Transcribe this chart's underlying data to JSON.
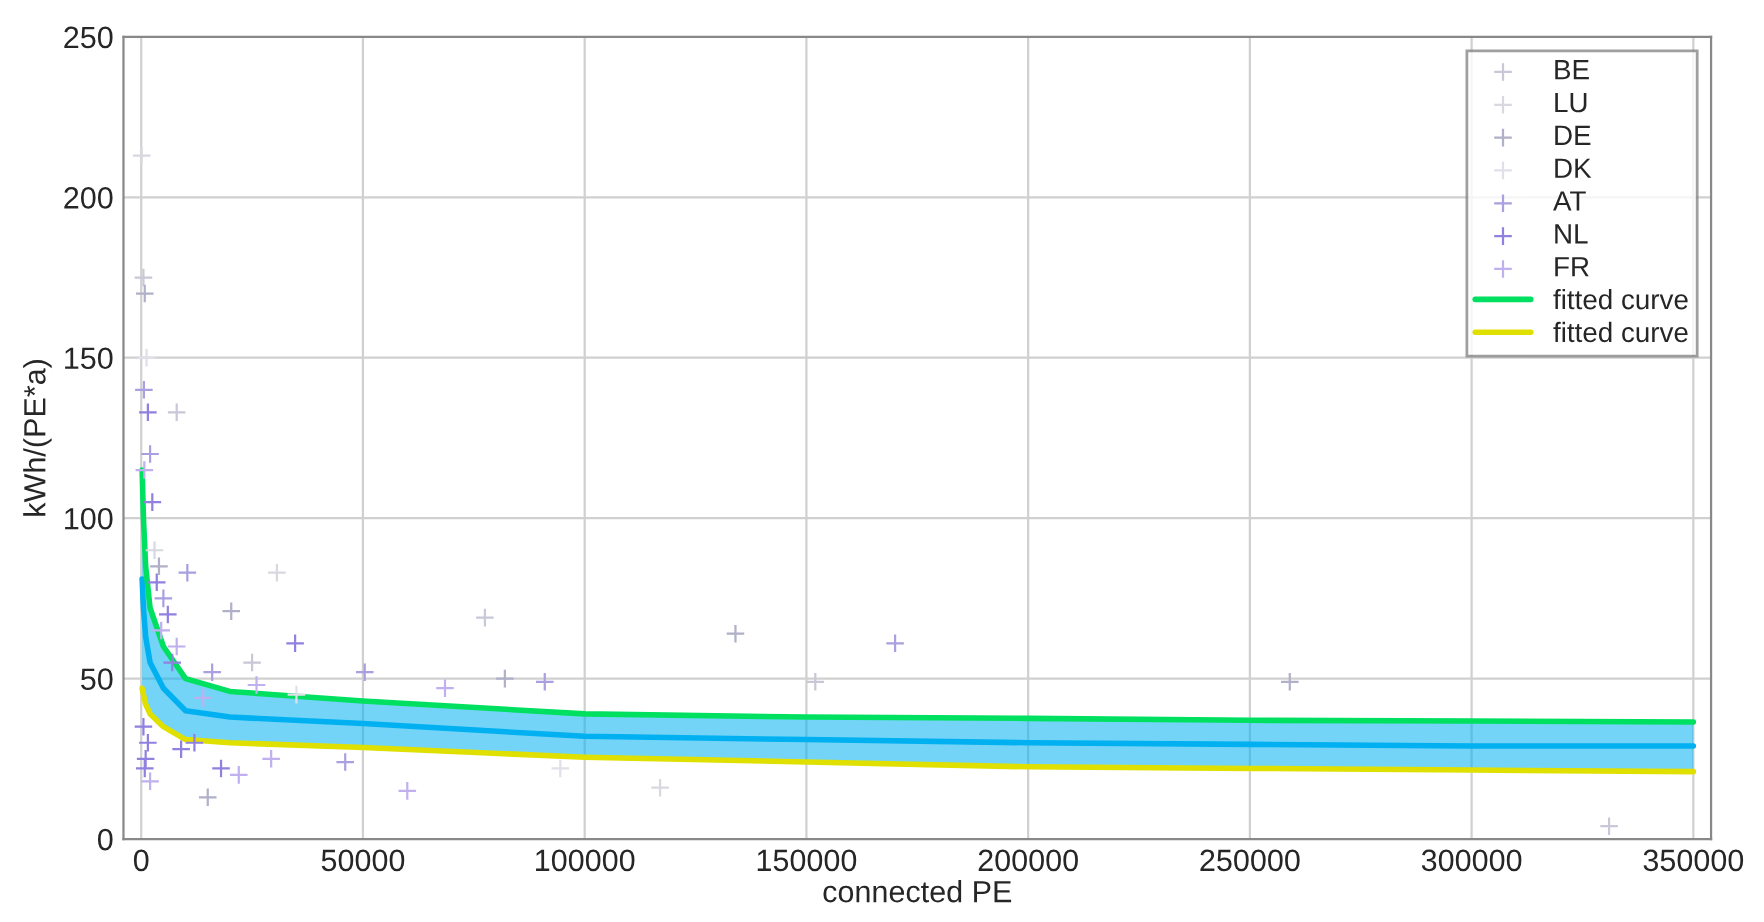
{
  "chart_data": {
    "type": "scatter",
    "xlabel": "connected PE",
    "ylabel": "kWh/(PE*a)",
    "xlim": [
      -4000,
      354000
    ],
    "ylim": [
      0,
      250
    ],
    "xticks": [
      0,
      50000,
      100000,
      150000,
      200000,
      250000,
      300000,
      350000
    ],
    "yticks": [
      0,
      50,
      100,
      150,
      200,
      250
    ],
    "grid": true,
    "legend": "top right",
    "marker": "cross",
    "series": [
      {
        "name": "BE",
        "color": "#c8c8d8",
        "x": [
          500,
          8000,
          25000,
          77500,
          152000,
          331000
        ],
        "values": [
          175,
          133,
          55,
          69,
          49,
          4
        ]
      },
      {
        "name": "LU",
        "color": "#d8d8e0",
        "x": [
          100,
          3000,
          30600,
          117000
        ],
        "values": [
          213,
          90,
          83,
          16
        ]
      },
      {
        "name": "DE",
        "color": "#b0b0c8",
        "x": [
          800,
          4000,
          20300,
          82000,
          134000,
          259000,
          15000
        ],
        "values": [
          170,
          85,
          71,
          50,
          64,
          49,
          13
        ]
      },
      {
        "name": "DK",
        "color": "#e0e0ea",
        "x": [
          1200,
          35000,
          94500
        ],
        "values": [
          150,
          45,
          22
        ]
      },
      {
        "name": "AT",
        "color": "#a8a0e0",
        "x": [
          600,
          2000,
          5000,
          10400,
          16000,
          50400,
          91000,
          170000,
          46000
        ],
        "values": [
          140,
          120,
          75,
          83,
          52,
          52,
          49,
          61,
          24
        ]
      },
      {
        "name": "NL",
        "color": "#9080e0",
        "x": [
          1500,
          2500,
          3500,
          6000,
          7000,
          500,
          1000,
          800,
          1500,
          9000,
          12000,
          18000,
          34700
        ],
        "values": [
          133,
          105,
          80,
          70,
          55,
          35,
          25,
          22,
          30,
          28,
          30,
          22,
          61
        ]
      },
      {
        "name": "FR",
        "color": "#c0b0f0",
        "x": [
          700,
          4500,
          8000,
          2000,
          22000,
          26000,
          14000,
          29300,
          60000,
          68500
        ],
        "values": [
          115,
          65,
          60,
          18,
          20,
          48,
          44,
          25,
          15,
          47
        ]
      },
      {
        "type": "line",
        "marker": "none",
        "color": "#00b0f0",
        "x": [
          200,
          500,
          1000,
          2000,
          5000,
          10000,
          20000,
          50000,
          100000,
          150000,
          200000,
          250000,
          300000,
          350000
        ],
        "values": [
          81,
          72,
          63,
          55,
          47,
          40,
          38,
          36,
          32,
          31,
          30,
          29.5,
          29,
          29
        ],
        "lower": [
          47,
          45,
          42,
          39,
          35,
          31,
          30,
          28.5,
          25.5,
          24,
          22.5,
          22,
          21.5,
          21
        ],
        "upper": [
          115,
          100,
          85,
          72,
          60,
          50,
          46,
          43,
          39,
          38,
          37.6,
          37,
          36.8,
          36.5
        ]
      },
      {
        "name": "fitted curve",
        "type": "line",
        "marker": "none",
        "color": "#00e060",
        "x": [
          200,
          500,
          1000,
          2000,
          5000,
          10000,
          20000,
          50000,
          100000,
          150000,
          200000,
          250000,
          300000,
          350000
        ],
        "values": [
          115,
          100,
          85,
          72,
          60,
          50,
          46,
          43,
          39,
          38,
          37.6,
          37,
          36.8,
          36.5
        ]
      },
      {
        "name": "fitted curve",
        "type": "line",
        "marker": "none",
        "color": "#e0e000",
        "x": [
          200,
          500,
          1000,
          2000,
          5000,
          10000,
          20000,
          50000,
          100000,
          150000,
          200000,
          250000,
          300000,
          350000
        ],
        "values": [
          47,
          45,
          42,
          39,
          35,
          31,
          30,
          28.5,
          25.5,
          24,
          22.5,
          22,
          21.5,
          21
        ]
      }
    ]
  }
}
